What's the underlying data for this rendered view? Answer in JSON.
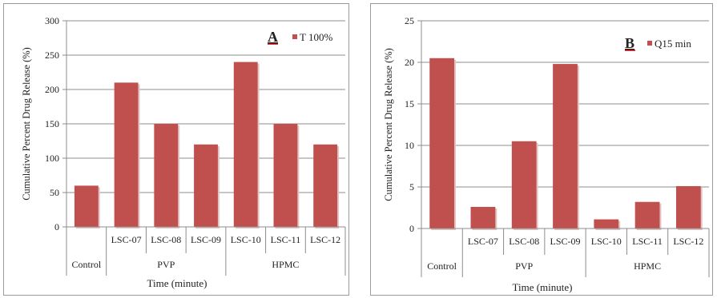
{
  "chart_data": [
    {
      "type": "bar",
      "panel_letter": "A",
      "legend_label": "T 100%",
      "ylabel": "Cumulative Percent Drug Release (%)",
      "xlabel": "Time (minute)",
      "ylim": [
        0,
        300
      ],
      "yticks": [
        "0",
        "50",
        "100",
        "150",
        "200",
        "250",
        "300"
      ],
      "grid": true,
      "legend_position": "top-right",
      "categories": [
        "",
        "LSC-07",
        "LSC-08",
        "LSC-09",
        "LSC-10",
        "LSC-11",
        "LSC-12"
      ],
      "groups": [
        "Control",
        "PVP",
        "HPMC"
      ],
      "values": [
        60,
        210,
        150,
        120,
        240,
        150,
        120
      ],
      "bar_color": "#c0504d",
      "accent_color": "#c00000"
    },
    {
      "type": "bar",
      "panel_letter": "B",
      "legend_label": "Q15 min",
      "ylabel": "Cumulative Percent Drug Release (%)",
      "xlabel": "Time (minute)",
      "ylim": [
        0,
        25
      ],
      "yticks": [
        "0",
        "5",
        "10",
        "15",
        "20",
        "25"
      ],
      "grid": true,
      "legend_position": "top-right",
      "categories": [
        "",
        "LSC-07",
        "LSC-08",
        "LSC-09",
        "LSC-10",
        "LSC-11",
        "LSC-12"
      ],
      "groups": [
        "Control",
        "PVP",
        "HPMC"
      ],
      "values": [
        20.5,
        2.6,
        10.5,
        19.8,
        1.1,
        3.2,
        5.1
      ],
      "bar_color": "#c0504d",
      "accent_color": "#c00000"
    }
  ]
}
